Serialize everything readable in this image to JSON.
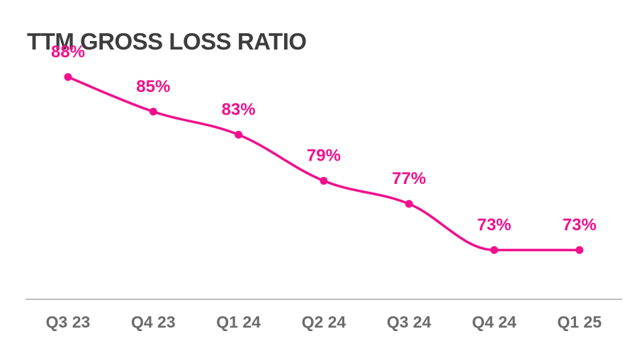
{
  "chart_data": {
    "type": "line",
    "title": "TTM GROSS LOSS RATIO",
    "categories": [
      "Q3 23",
      "Q4 23",
      "Q1 24",
      "Q2 24",
      "Q3 24",
      "Q4 24",
      "Q1 25"
    ],
    "values": [
      88,
      85,
      83,
      79,
      77,
      73,
      73
    ],
    "data_labels": [
      "88%",
      "85%",
      "83%",
      "79%",
      "77%",
      "73%",
      "73%"
    ],
    "xlabel": "",
    "ylabel": "",
    "ylim": [
      64,
      91
    ],
    "grid": false,
    "legend": "none",
    "line_style": "smooth",
    "colors": {
      "series": "#f0108c",
      "axis": "#a8a8a8",
      "tick_text": "#6b6b6b",
      "title_text": "#3d3d3d"
    }
  }
}
